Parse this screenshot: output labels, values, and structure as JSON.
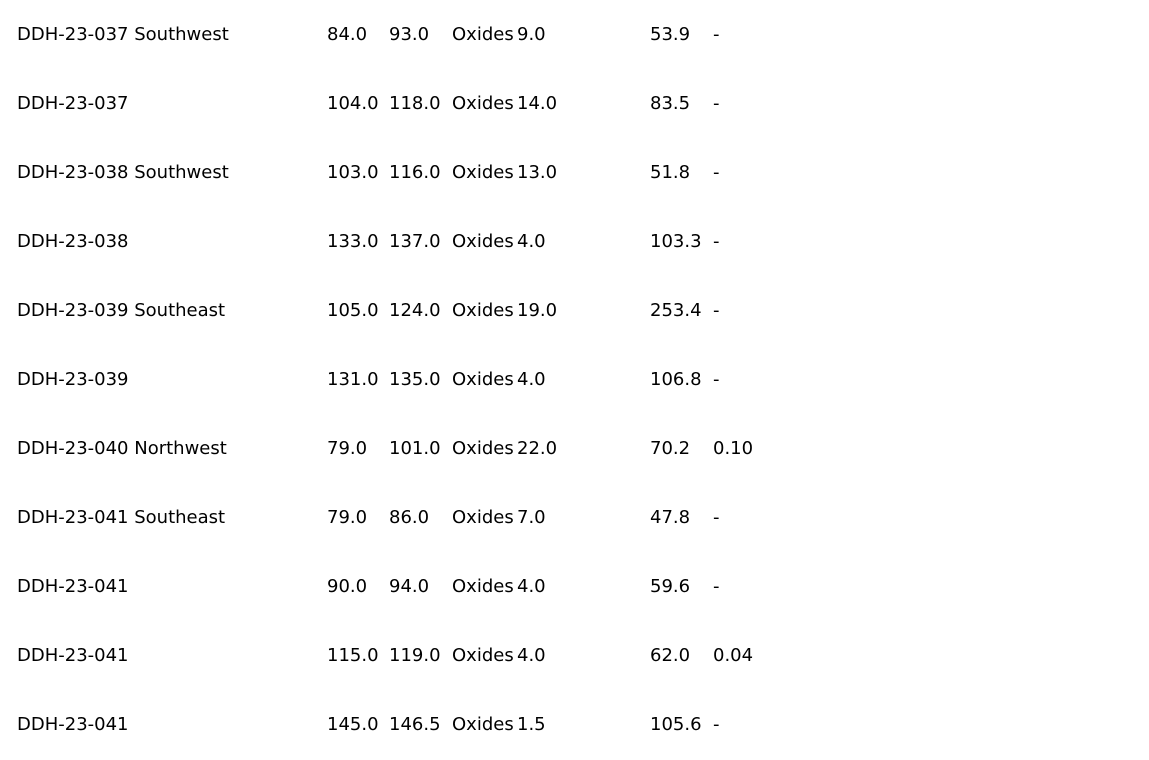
{
  "rows": [
    {
      "hole": "DDH-23-037 Southwest",
      "from": "84.0",
      "to": "93.0",
      "type": "Oxides",
      "length": "9.0",
      "ag": "53.9",
      "au": "-"
    },
    {
      "hole": "DDH-23-037",
      "from": "104.0",
      "to": "118.0",
      "type": "Oxides",
      "length": "14.0",
      "ag": "83.5",
      "au": "-"
    },
    {
      "hole": "DDH-23-038 Southwest",
      "from": "103.0",
      "to": "116.0",
      "type": "Oxides",
      "length": "13.0",
      "ag": "51.8",
      "au": "-"
    },
    {
      "hole": "DDH-23-038",
      "from": "133.0",
      "to": "137.0",
      "type": "Oxides",
      "length": "4.0",
      "ag": "103.3",
      "au": "-"
    },
    {
      "hole": "DDH-23-039 Southeast",
      "from": "105.0",
      "to": "124.0",
      "type": "Oxides",
      "length": "19.0",
      "ag": "253.4",
      "au": "-"
    },
    {
      "hole": "DDH-23-039",
      "from": "131.0",
      "to": "135.0",
      "type": "Oxides",
      "length": "4.0",
      "ag": "106.8",
      "au": "-"
    },
    {
      "hole": "DDH-23-040 Northwest",
      "from": "79.0",
      "to": "101.0",
      "type": "Oxides",
      "length": "22.0",
      "ag": "70.2",
      "au": "0.10"
    },
    {
      "hole": "DDH-23-041 Southeast",
      "from": "79.0",
      "to": "86.0",
      "type": "Oxides",
      "length": "7.0",
      "ag": "47.8",
      "au": "-"
    },
    {
      "hole": "DDH-23-041",
      "from": "90.0",
      "to": "94.0",
      "type": "Oxides",
      "length": "4.0",
      "ag": "59.6",
      "au": "-"
    },
    {
      "hole": "DDH-23-041",
      "from": "115.0",
      "to": "119.0",
      "type": "Oxides",
      "length": "4.0",
      "ag": "62.0",
      "au": "0.04"
    },
    {
      "hole": "DDH-23-041",
      "from": "145.0",
      "to": "146.5",
      "type": "Oxides",
      "length": "1.5",
      "ag": "105.6",
      "au": "-"
    }
  ]
}
